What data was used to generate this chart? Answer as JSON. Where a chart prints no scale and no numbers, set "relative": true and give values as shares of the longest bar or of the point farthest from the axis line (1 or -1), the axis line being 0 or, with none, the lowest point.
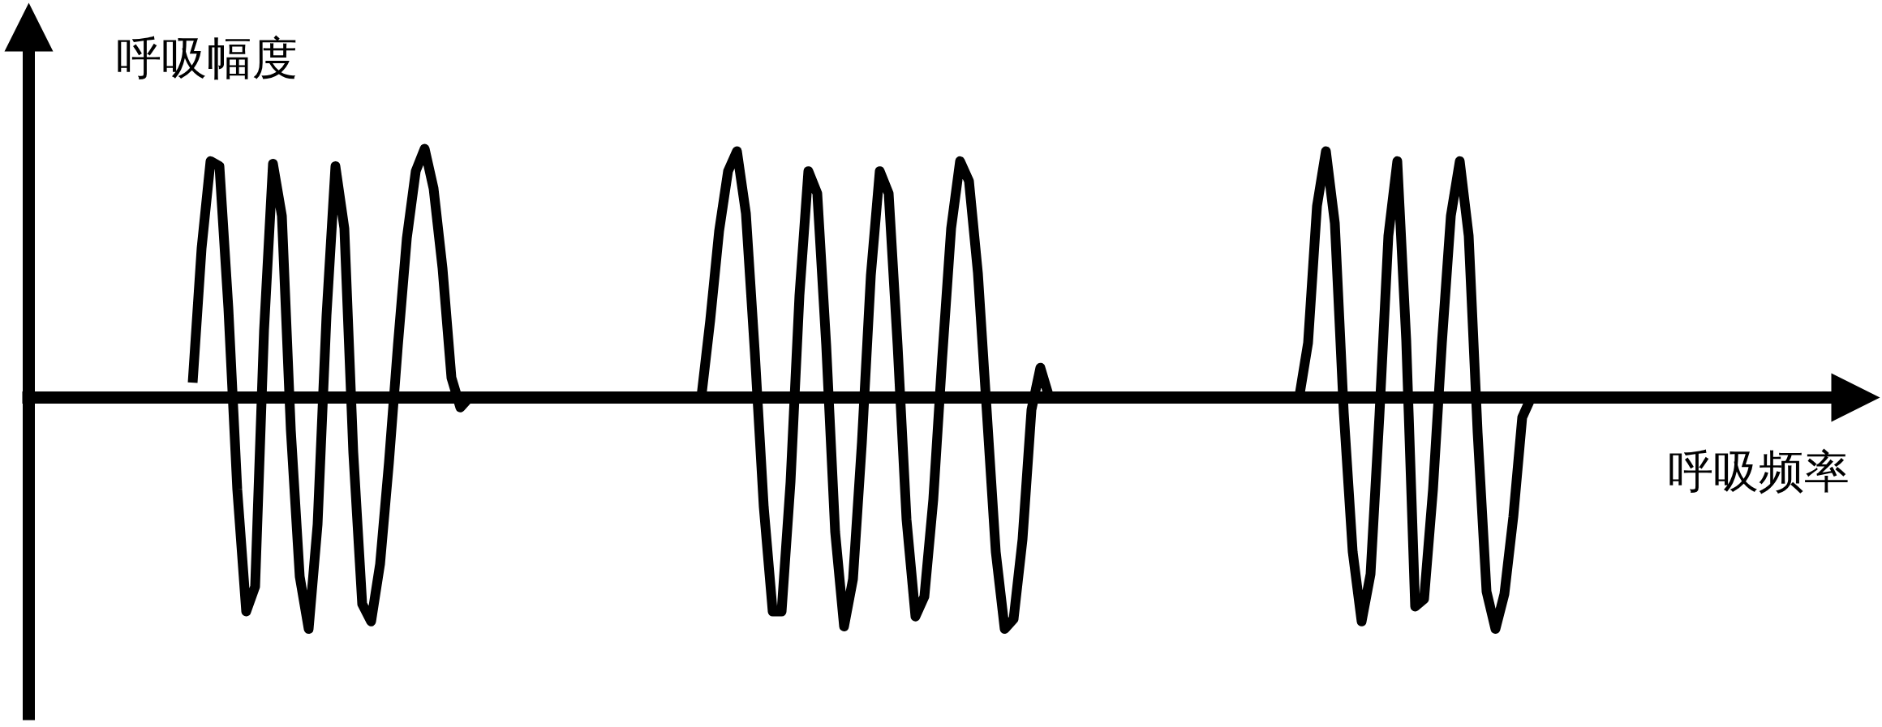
{
  "chart_data": {
    "type": "line",
    "relative": true,
    "xlabel": "呼吸频率",
    "ylabel": "呼吸幅度",
    "categories": [
      null,
      null,
      null,
      null,
      null,
      null,
      null,
      null,
      null,
      null,
      null,
      null,
      null,
      null,
      null,
      null,
      null,
      null,
      null,
      null,
      null,
      null,
      null,
      null,
      null,
      null,
      null,
      null,
      null,
      null,
      null,
      null,
      null,
      null,
      null,
      null,
      null,
      null,
      null,
      null,
      null,
      null,
      null,
      null,
      null,
      null,
      null,
      null,
      null,
      null,
      null,
      null,
      null,
      null,
      null,
      null,
      null,
      null,
      null,
      null,
      null,
      null,
      null,
      null,
      null,
      null,
      null,
      null,
      null,
      null,
      null,
      null,
      null,
      null,
      null,
      null,
      null,
      null,
      null,
      null,
      null,
      null,
      null,
      null,
      null,
      null,
      null,
      null,
      null,
      null,
      null,
      null,
      null,
      null,
      null,
      null,
      null,
      null,
      null,
      null,
      null,
      null,
      null,
      null,
      null,
      null,
      null,
      null,
      null,
      null,
      null,
      null,
      null,
      null,
      null,
      null,
      null,
      null,
      null,
      null,
      null,
      null,
      null,
      null,
      null,
      null,
      null,
      null,
      null,
      null,
      null,
      null,
      null,
      null,
      null,
      null,
      null,
      null,
      null,
      null,
      null,
      null,
      null,
      null,
      null,
      null,
      null,
      null,
      null,
      null,
      null
    ],
    "series": [
      {
        "color": "#000000",
        "values": [
          0.06,
          0.6,
          0.95,
          0.93,
          0.36,
          -0.37,
          -0.86,
          -0.76,
          0.27,
          0.94,
          0.73,
          -0.13,
          -0.72,
          -0.93,
          -0.51,
          0.33,
          0.93,
          0.68,
          -0.22,
          -0.83,
          -0.9,
          -0.67,
          -0.26,
          0.21,
          0.64,
          0.91,
          1.0,
          0.84,
          0.52,
          0.08,
          -0.04,
          0,
          0,
          0,
          0,
          0,
          0,
          0,
          0,
          0,
          0,
          0,
          0,
          0,
          0,
          0,
          0,
          0,
          0,
          0,
          0,
          0,
          0,
          0,
          0,
          0,
          0,
          0,
          0.31,
          0.67,
          0.91,
          0.99,
          0.74,
          0.18,
          -0.44,
          -0.86,
          -0.86,
          -0.34,
          0.41,
          0.91,
          0.82,
          0.21,
          -0.54,
          -0.92,
          -0.73,
          -0.18,
          0.49,
          0.91,
          0.82,
          0.21,
          -0.49,
          -0.88,
          -0.8,
          -0.41,
          0.16,
          0.68,
          0.95,
          0.87,
          0.5,
          -0.06,
          -0.62,
          -0.93,
          -0.89,
          -0.57,
          -0.05,
          0.12,
          0,
          0,
          0,
          0,
          0,
          0,
          0,
          0,
          0,
          0,
          0,
          0,
          0,
          0,
          0,
          0,
          0,
          0,
          0,
          0,
          0,
          0,
          0,
          0,
          0,
          0,
          0,
          0,
          0,
          0.22,
          0.77,
          0.99,
          0.7,
          -0.06,
          -0.62,
          -0.9,
          -0.71,
          -0.07,
          0.65,
          0.95,
          0.23,
          -0.84,
          -0.81,
          -0.37,
          0.22,
          0.73,
          0.95,
          0.65,
          -0.14,
          -0.78,
          -0.93,
          -0.79,
          -0.48,
          -0.08,
          0
        ]
      }
    ]
  }
}
